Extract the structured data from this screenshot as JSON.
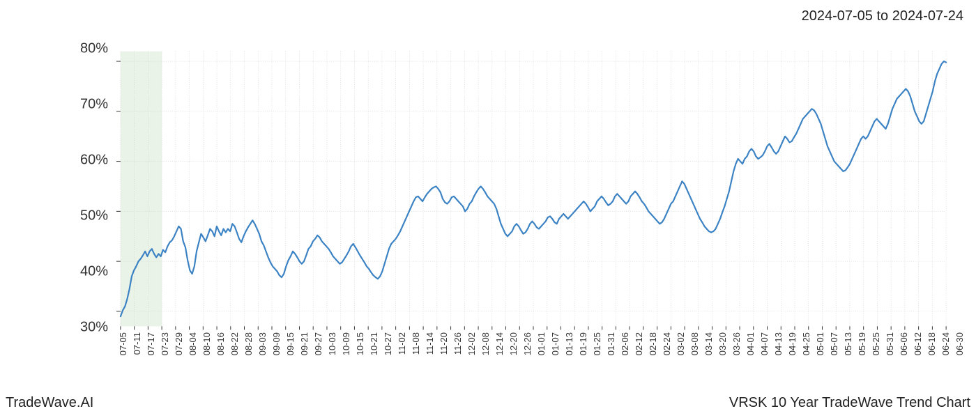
{
  "header": {
    "date_range": "2024-07-05 to 2024-07-24"
  },
  "footer": {
    "left": "TradeWave.AI",
    "right": "VRSK 10 Year TradeWave Trend Chart"
  },
  "chart": {
    "type": "line",
    "line_color": "#3b82c4",
    "line_width": 2.2,
    "background_color": "#ffffff",
    "grid_color": "#cccccc",
    "grid_dash": "1 2",
    "highlight_band": {
      "start_x_index": 0,
      "end_x_index": 3,
      "fill": "#d9ead3",
      "opacity": 0.55
    },
    "y_axis": {
      "min": 27,
      "max": 82,
      "ticks": [
        30,
        40,
        50,
        60,
        70,
        80
      ],
      "tick_labels": [
        "30%",
        "40%",
        "50%",
        "60%",
        "70%",
        "80%"
      ],
      "label_fontsize": 20,
      "label_color": "#333333"
    },
    "x_axis": {
      "categories": [
        "07-05",
        "07-11",
        "07-17",
        "07-23",
        "07-29",
        "08-04",
        "08-10",
        "08-16",
        "08-22",
        "08-28",
        "09-03",
        "09-09",
        "09-15",
        "09-21",
        "09-27",
        "10-03",
        "10-09",
        "10-15",
        "10-21",
        "10-27",
        "11-02",
        "11-08",
        "11-14",
        "11-20",
        "11-26",
        "12-02",
        "12-08",
        "12-14",
        "12-20",
        "12-26",
        "01-01",
        "01-07",
        "01-13",
        "01-19",
        "01-25",
        "01-31",
        "02-06",
        "02-12",
        "02-18",
        "02-24",
        "03-02",
        "03-08",
        "03-14",
        "03-20",
        "03-26",
        "04-01",
        "04-07",
        "04-13",
        "04-19",
        "04-25",
        "05-01",
        "05-07",
        "05-13",
        "05-19",
        "05-25",
        "05-31",
        "06-06",
        "06-12",
        "06-18",
        "06-24",
        "06-30"
      ],
      "label_fontsize": 13,
      "label_color": "#333333",
      "rotation": -90
    },
    "series": {
      "name": "VRSK Trend",
      "values": [
        29.0,
        30.2,
        31.0,
        32.5,
        34.5,
        37.0,
        38.2,
        39.0,
        40.0,
        40.5,
        41.2,
        42.0,
        41.0,
        42.0,
        42.5,
        41.5,
        40.8,
        41.5,
        41.0,
        42.3,
        41.8,
        43.0,
        43.8,
        44.2,
        45.0,
        46.0,
        47.0,
        46.5,
        44.0,
        42.8,
        40.2,
        38.2,
        37.5,
        39.0,
        42.0,
        43.8,
        45.5,
        44.8,
        44.0,
        45.2,
        46.5,
        46.0,
        45.0,
        47.0,
        46.0,
        45.2,
        46.5,
        45.8,
        46.5,
        46.0,
        47.5,
        47.0,
        45.8,
        44.5,
        43.8,
        45.0,
        46.0,
        46.8,
        47.5,
        48.2,
        47.5,
        46.5,
        45.5,
        44.0,
        43.2,
        42.0,
        40.8,
        39.8,
        39.0,
        38.5,
        38.0,
        37.2,
        36.8,
        37.5,
        39.0,
        40.2,
        41.0,
        42.0,
        41.5,
        40.8,
        40.0,
        39.5,
        40.0,
        41.2,
        42.5,
        43.0,
        44.0,
        44.5,
        45.2,
        44.8,
        44.0,
        43.5,
        43.0,
        42.5,
        41.8,
        41.0,
        40.5,
        40.0,
        39.5,
        39.8,
        40.5,
        41.2,
        42.0,
        43.0,
        43.5,
        42.8,
        42.0,
        41.2,
        40.5,
        39.8,
        39.0,
        38.5,
        37.8,
        37.2,
        36.8,
        36.5,
        37.0,
        38.0,
        39.5,
        41.0,
        42.5,
        43.5,
        44.0,
        44.5,
        45.2,
        46.0,
        47.0,
        48.0,
        49.0,
        50.0,
        51.0,
        52.0,
        52.8,
        53.0,
        52.5,
        52.0,
        52.8,
        53.5,
        54.0,
        54.5,
        54.8,
        55.0,
        54.5,
        53.8,
        52.5,
        51.8,
        51.5,
        52.0,
        52.8,
        53.0,
        52.5,
        52.0,
        51.5,
        51.0,
        50.0,
        50.5,
        51.5,
        52.0,
        53.0,
        53.8,
        54.5,
        55.0,
        54.5,
        53.8,
        53.0,
        52.5,
        52.0,
        51.5,
        50.5,
        49.0,
        47.5,
        46.5,
        45.5,
        45.0,
        45.5,
        46.0,
        47.0,
        47.5,
        47.0,
        46.2,
        45.5,
        45.8,
        46.5,
        47.5,
        48.0,
        47.5,
        46.8,
        46.5,
        47.0,
        47.5,
        48.0,
        48.8,
        49.0,
        48.5,
        47.8,
        47.5,
        48.5,
        49.0,
        49.5,
        49.0,
        48.5,
        49.0,
        49.5,
        50.0,
        50.5,
        51.0,
        51.5,
        52.0,
        51.5,
        50.8,
        50.0,
        50.5,
        51.0,
        52.0,
        52.5,
        53.0,
        52.5,
        51.8,
        51.2,
        51.5,
        52.0,
        53.0,
        53.5,
        53.0,
        52.5,
        52.0,
        51.5,
        52.0,
        53.0,
        53.5,
        54.0,
        53.5,
        52.8,
        52.0,
        51.5,
        50.8,
        50.0,
        49.5,
        49.0,
        48.5,
        48.0,
        47.5,
        47.8,
        48.5,
        49.5,
        50.5,
        51.5,
        52.0,
        53.0,
        54.0,
        55.0,
        56.0,
        55.5,
        54.5,
        53.5,
        52.5,
        51.5,
        50.5,
        49.5,
        48.5,
        47.8,
        47.0,
        46.5,
        46.0,
        45.8,
        46.0,
        46.5,
        47.5,
        48.5,
        49.8,
        51.0,
        52.5,
        54.0,
        56.0,
        58.0,
        59.5,
        60.5,
        60.0,
        59.5,
        60.5,
        61.0,
        62.0,
        62.5,
        62.0,
        61.0,
        60.5,
        60.8,
        61.2,
        62.0,
        63.0,
        63.5,
        62.8,
        62.0,
        61.5,
        62.0,
        63.0,
        64.0,
        65.0,
        64.5,
        63.8,
        64.0,
        64.8,
        65.5,
        66.5,
        67.5,
        68.5,
        69.0,
        69.5,
        70.0,
        70.5,
        70.2,
        69.5,
        68.5,
        67.5,
        66.0,
        64.5,
        63.0,
        62.0,
        61.0,
        60.0,
        59.5,
        59.0,
        58.5,
        58.0,
        58.2,
        58.8,
        59.5,
        60.5,
        61.5,
        62.5,
        63.5,
        64.5,
        65.0,
        64.5,
        65.0,
        66.0,
        67.0,
        68.0,
        68.5,
        68.0,
        67.5,
        67.0,
        66.5,
        67.5,
        69.0,
        70.5,
        71.5,
        72.5,
        73.0,
        73.5,
        74.0,
        74.5,
        74.0,
        73.0,
        71.5,
        70.0,
        69.0,
        68.0,
        67.5,
        68.0,
        69.5,
        71.0,
        72.5,
        74.0,
        76.0,
        77.5,
        78.5,
        79.5,
        80.0,
        79.8
      ]
    }
  }
}
